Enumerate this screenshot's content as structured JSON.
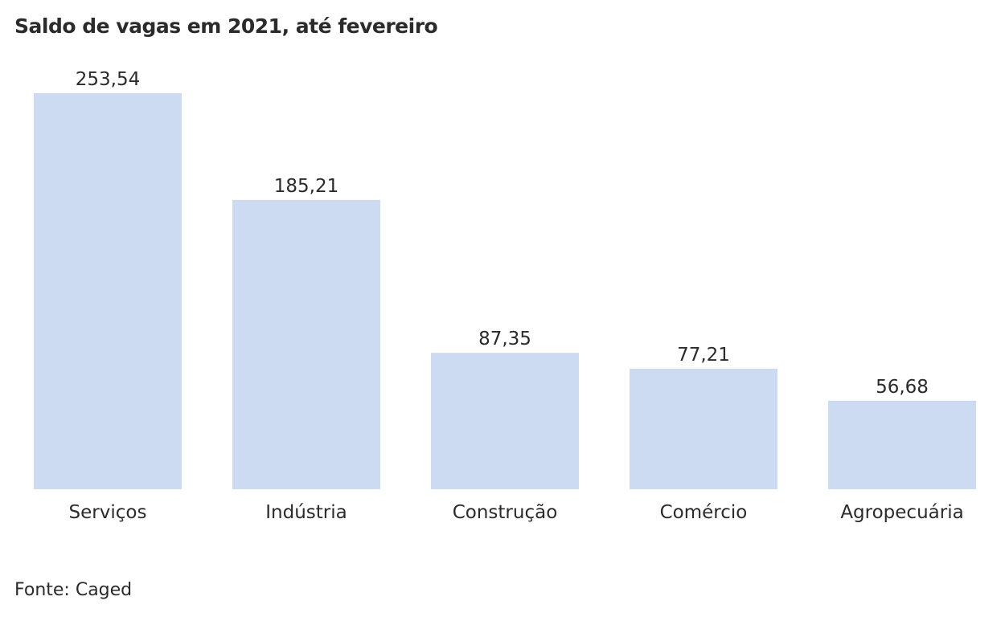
{
  "chart_data": {
    "type": "bar",
    "title": "Saldo de vagas em 2021, até fevereiro",
    "categories": [
      "Serviços",
      "Indústria",
      "Construção",
      "Comércio",
      "Agropecuária"
    ],
    "values": [
      253.54,
      185.21,
      87.35,
      77.21,
      56.68
    ],
    "value_labels": [
      "253,54",
      "185,21",
      "87,35",
      "77,21",
      "56,68"
    ],
    "xlabel": "",
    "ylabel": "",
    "ylim": [
      0,
      253.54
    ],
    "grid": false,
    "legend": "none",
    "bar_color": "#cddbf2"
  },
  "source": "Fonte: Caged"
}
